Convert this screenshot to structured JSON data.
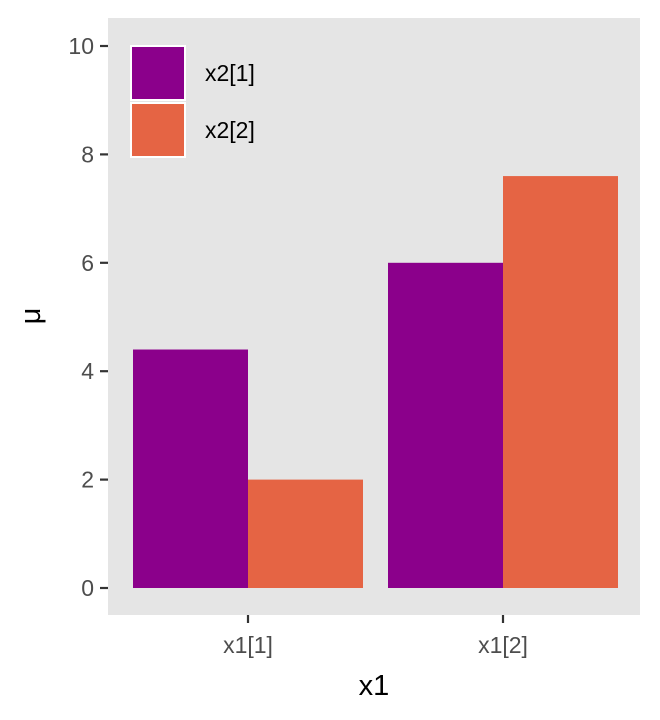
{
  "chart_data": {
    "type": "bar",
    "categories": [
      "x1[1]",
      "x1[2]"
    ],
    "series": [
      {
        "name": "x2[1]",
        "color": "#8B008B",
        "values": [
          4.4,
          6.0
        ]
      },
      {
        "name": "x2[2]",
        "color": "#E56444",
        "values": [
          2.0,
          7.6
        ]
      }
    ],
    "xlabel": "x1",
    "ylabel": "μ",
    "ylim": [
      0,
      10
    ],
    "yticks": [
      "0",
      "2",
      "4",
      "6",
      "8",
      "10"
    ],
    "grid": false,
    "legend_position": "top-left",
    "panel_color": "#E5E5E5"
  }
}
